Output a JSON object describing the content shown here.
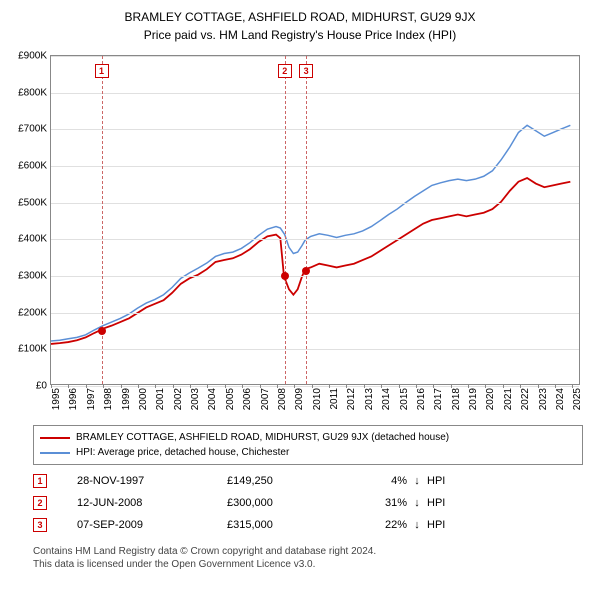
{
  "title": "BRAMLEY COTTAGE, ASHFIELD ROAD, MIDHURST, GU29 9JX",
  "subtitle": "Price paid vs. HM Land Registry's House Price Index (HPI)",
  "chart": {
    "type": "line",
    "xlim": [
      1995.0,
      2025.5
    ],
    "ylim": [
      0,
      900000
    ],
    "ytick_step": 100000,
    "ytick_prefix": "£",
    "ytick_suffix": "K",
    "xtick_step": 1,
    "background_color": "#ffffff",
    "grid_color": "#e0e0e0",
    "axis_color": "#888888",
    "label_fontsize": 10,
    "series": [
      {
        "name": "property_price",
        "label": "BRAMLEY COTTAGE, ASHFIELD ROAD, MIDHURST, GU29 9JX (detached house)",
        "color": "#cc0000",
        "line_width": 1.8,
        "data": [
          [
            1995.0,
            110000
          ],
          [
            1995.5,
            112000
          ],
          [
            1996.0,
            115000
          ],
          [
            1996.5,
            120000
          ],
          [
            1997.0,
            128000
          ],
          [
            1997.5,
            140000
          ],
          [
            1997.91,
            149250
          ],
          [
            1998.0,
            152000
          ],
          [
            1998.5,
            160000
          ],
          [
            1999.0,
            170000
          ],
          [
            1999.5,
            180000
          ],
          [
            2000.0,
            195000
          ],
          [
            2000.5,
            210000
          ],
          [
            2001.0,
            220000
          ],
          [
            2001.5,
            230000
          ],
          [
            2002.0,
            250000
          ],
          [
            2002.5,
            275000
          ],
          [
            2003.0,
            290000
          ],
          [
            2003.5,
            300000
          ],
          [
            2004.0,
            315000
          ],
          [
            2004.5,
            335000
          ],
          [
            2005.0,
            340000
          ],
          [
            2005.5,
            345000
          ],
          [
            2006.0,
            355000
          ],
          [
            2006.5,
            370000
          ],
          [
            2007.0,
            390000
          ],
          [
            2007.5,
            405000
          ],
          [
            2008.0,
            410000
          ],
          [
            2008.25,
            400000
          ],
          [
            2008.45,
            300000
          ],
          [
            2008.5,
            290000
          ],
          [
            2008.75,
            260000
          ],
          [
            2009.0,
            245000
          ],
          [
            2009.25,
            260000
          ],
          [
            2009.5,
            295000
          ],
          [
            2009.68,
            315000
          ],
          [
            2010.0,
            320000
          ],
          [
            2010.5,
            330000
          ],
          [
            2011.0,
            325000
          ],
          [
            2011.5,
            320000
          ],
          [
            2012.0,
            325000
          ],
          [
            2012.5,
            330000
          ],
          [
            2013.0,
            340000
          ],
          [
            2013.5,
            350000
          ],
          [
            2014.0,
            365000
          ],
          [
            2014.5,
            380000
          ],
          [
            2015.0,
            395000
          ],
          [
            2015.5,
            410000
          ],
          [
            2016.0,
            425000
          ],
          [
            2016.5,
            440000
          ],
          [
            2017.0,
            450000
          ],
          [
            2017.5,
            455000
          ],
          [
            2018.0,
            460000
          ],
          [
            2018.5,
            465000
          ],
          [
            2019.0,
            460000
          ],
          [
            2019.5,
            465000
          ],
          [
            2020.0,
            470000
          ],
          [
            2020.5,
            480000
          ],
          [
            2021.0,
            500000
          ],
          [
            2021.5,
            530000
          ],
          [
            2022.0,
            555000
          ],
          [
            2022.5,
            565000
          ],
          [
            2023.0,
            550000
          ],
          [
            2023.5,
            540000
          ],
          [
            2024.0,
            545000
          ],
          [
            2024.5,
            550000
          ],
          [
            2025.0,
            555000
          ]
        ]
      },
      {
        "name": "hpi",
        "label": "HPI: Average price, detached house, Chichester",
        "color": "#5b8fd6",
        "line_width": 1.5,
        "data": [
          [
            1995.0,
            118000
          ],
          [
            1995.5,
            120000
          ],
          [
            1996.0,
            124000
          ],
          [
            1996.5,
            128000
          ],
          [
            1997.0,
            135000
          ],
          [
            1997.5,
            148000
          ],
          [
            1998.0,
            160000
          ],
          [
            1998.5,
            170000
          ],
          [
            1999.0,
            180000
          ],
          [
            1999.5,
            192000
          ],
          [
            2000.0,
            208000
          ],
          [
            2000.5,
            222000
          ],
          [
            2001.0,
            232000
          ],
          [
            2001.5,
            245000
          ],
          [
            2002.0,
            265000
          ],
          [
            2002.5,
            290000
          ],
          [
            2003.0,
            305000
          ],
          [
            2003.5,
            318000
          ],
          [
            2004.0,
            332000
          ],
          [
            2004.5,
            350000
          ],
          [
            2005.0,
            358000
          ],
          [
            2005.5,
            362000
          ],
          [
            2006.0,
            372000
          ],
          [
            2006.5,
            388000
          ],
          [
            2007.0,
            408000
          ],
          [
            2007.5,
            425000
          ],
          [
            2008.0,
            432000
          ],
          [
            2008.25,
            428000
          ],
          [
            2008.5,
            410000
          ],
          [
            2008.75,
            375000
          ],
          [
            2009.0,
            358000
          ],
          [
            2009.25,
            362000
          ],
          [
            2009.5,
            380000
          ],
          [
            2009.68,
            395000
          ],
          [
            2010.0,
            405000
          ],
          [
            2010.5,
            412000
          ],
          [
            2011.0,
            408000
          ],
          [
            2011.5,
            402000
          ],
          [
            2012.0,
            408000
          ],
          [
            2012.5,
            412000
          ],
          [
            2013.0,
            420000
          ],
          [
            2013.5,
            432000
          ],
          [
            2014.0,
            448000
          ],
          [
            2014.5,
            465000
          ],
          [
            2015.0,
            480000
          ],
          [
            2015.5,
            498000
          ],
          [
            2016.0,
            515000
          ],
          [
            2016.5,
            530000
          ],
          [
            2017.0,
            545000
          ],
          [
            2017.5,
            552000
          ],
          [
            2018.0,
            558000
          ],
          [
            2018.5,
            562000
          ],
          [
            2019.0,
            558000
          ],
          [
            2019.5,
            562000
          ],
          [
            2020.0,
            570000
          ],
          [
            2020.5,
            585000
          ],
          [
            2021.0,
            615000
          ],
          [
            2021.5,
            650000
          ],
          [
            2022.0,
            690000
          ],
          [
            2022.5,
            710000
          ],
          [
            2023.0,
            695000
          ],
          [
            2023.5,
            680000
          ],
          [
            2024.0,
            690000
          ],
          [
            2024.5,
            700000
          ],
          [
            2025.0,
            710000
          ]
        ]
      }
    ],
    "markers": [
      {
        "idx": "1",
        "x": 1997.91,
        "y": 149250,
        "color": "#cc0000",
        "box_y_offset_label": 70
      },
      {
        "idx": "2",
        "x": 2008.45,
        "y": 300000,
        "color": "#cc0000",
        "box_y_offset_label": 70
      },
      {
        "idx": "3",
        "x": 2009.68,
        "y": 315000,
        "color": "#cc0000",
        "box_y_offset_label": 70
      }
    ],
    "marker_line_color": "#cc6666"
  },
  "legend": {
    "border_color": "#888888",
    "fontsize": 10
  },
  "sales": [
    {
      "idx": "1",
      "date": "28-NOV-1997",
      "price": "£149,250",
      "pct": "4%",
      "arrow": "↓",
      "suffix": "HPI"
    },
    {
      "idx": "2",
      "date": "12-JUN-2008",
      "price": "£300,000",
      "pct": "31%",
      "arrow": "↓",
      "suffix": "HPI"
    },
    {
      "idx": "3",
      "date": "07-SEP-2009",
      "price": "£315,000",
      "pct": "22%",
      "arrow": "↓",
      "suffix": "HPI"
    }
  ],
  "footer_line1": "Contains HM Land Registry data © Crown copyright and database right 2024.",
  "footer_line2": "This data is licensed under the Open Government Licence v3.0."
}
